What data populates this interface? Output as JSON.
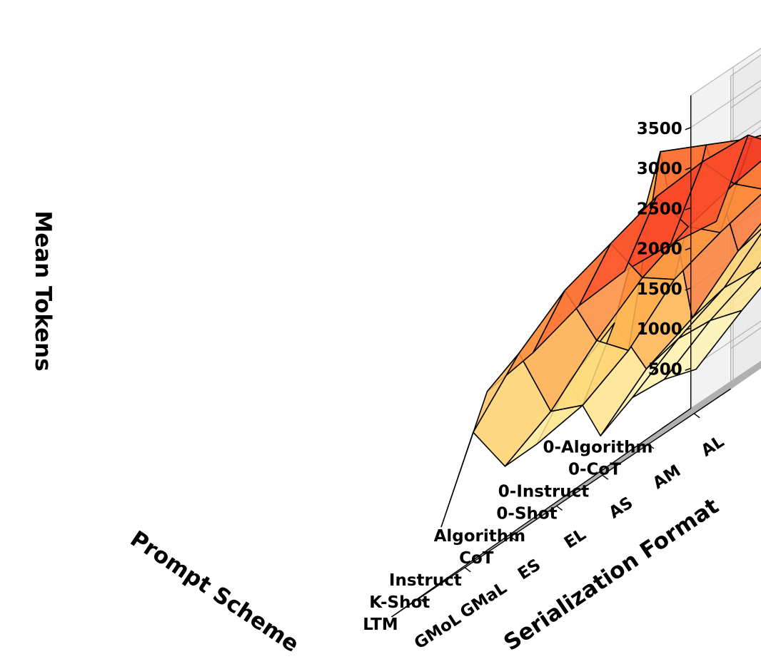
{
  "chart_data": {
    "type": "surface3d",
    "xlabel": "Prompt Scheme",
    "ylabel": "Serialization Format",
    "zlabel": "Mean Tokens",
    "x_categories": [
      "0-Algorithm",
      "0-CoT",
      "0-Instruct",
      "0-Shot",
      "Algorithm",
      "CoT",
      "Instruct",
      "K-Shot",
      "LTM"
    ],
    "y_categories": [
      "GMoL",
      "GMaL",
      "ES",
      "EL",
      "AS",
      "AM",
      "AL"
    ],
    "zticks": [
      500,
      1000,
      1500,
      2000,
      2500,
      3000,
      3500
    ],
    "zlim": [
      0,
      3900
    ],
    "grid": true,
    "colormap": "YlOrRd",
    "values": [
      [
        450,
        800,
        1100,
        1500,
        1800,
        1900,
        2100
      ],
      [
        600,
        950,
        1200,
        1650,
        1900,
        2100,
        2350
      ],
      [
        650,
        1000,
        1250,
        1700,
        1950,
        2150,
        2400
      ],
      [
        450,
        900,
        1150,
        1600,
        1900,
        2100,
        2350
      ],
      [
        1400,
        1750,
        3500,
        3200,
        2900,
        2700,
        2500
      ],
      [
        900,
        1000,
        1300,
        1800,
        2000,
        2150,
        2200
      ],
      [
        900,
        1200,
        1700,
        2100,
        2350,
        2500,
        2600
      ],
      [
        1600,
        2200,
        2600,
        2800,
        3000,
        3050,
        3000
      ],
      [
        700,
        2000,
        2100,
        2300,
        2350,
        2300,
        2200
      ]
    ]
  }
}
